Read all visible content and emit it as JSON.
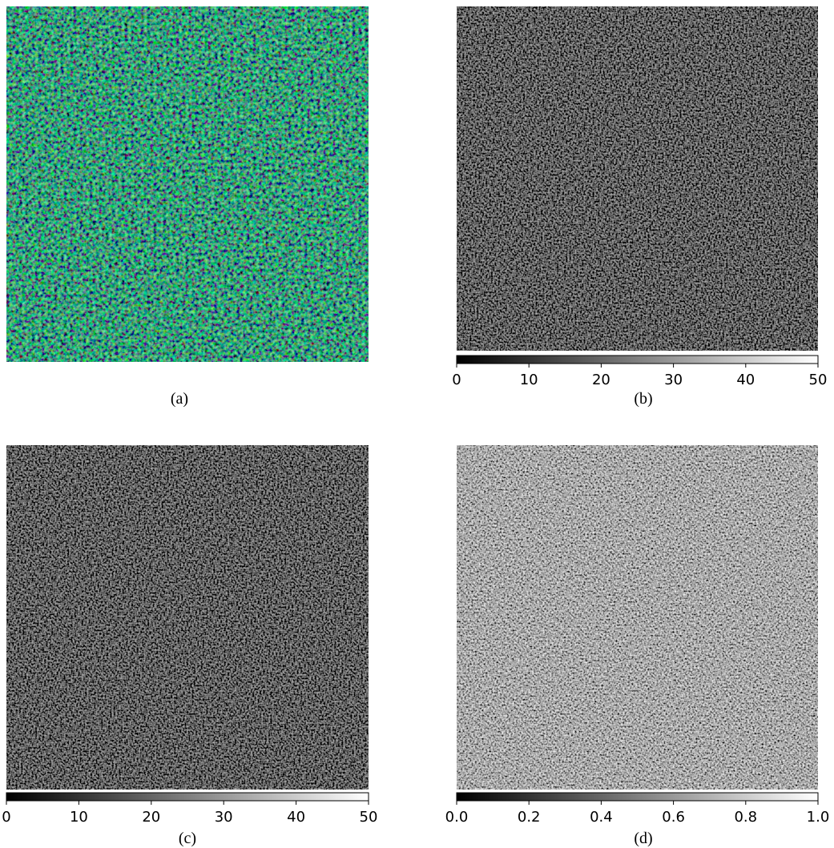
{
  "panels": [
    {
      "caption": "(a)"
    },
    {
      "caption": "(b)",
      "colorbar": {
        "lim": [
          0,
          50
        ],
        "ticks": [
          0,
          10,
          20,
          30,
          40,
          50
        ]
      }
    },
    {
      "caption": "(c)",
      "colorbar": {
        "lim": [
          0,
          50
        ],
        "ticks": [
          0,
          10,
          20,
          30,
          40,
          50
        ]
      }
    },
    {
      "caption": "(d)",
      "colorbar": {
        "lim": [
          0,
          1
        ],
        "ticks": [
          {
            "value": 0,
            "label": "0.0"
          },
          0.2,
          0.4,
          0.6,
          0.8,
          {
            "value": 1,
            "label": "1.0"
          }
        ]
      }
    }
  ]
}
